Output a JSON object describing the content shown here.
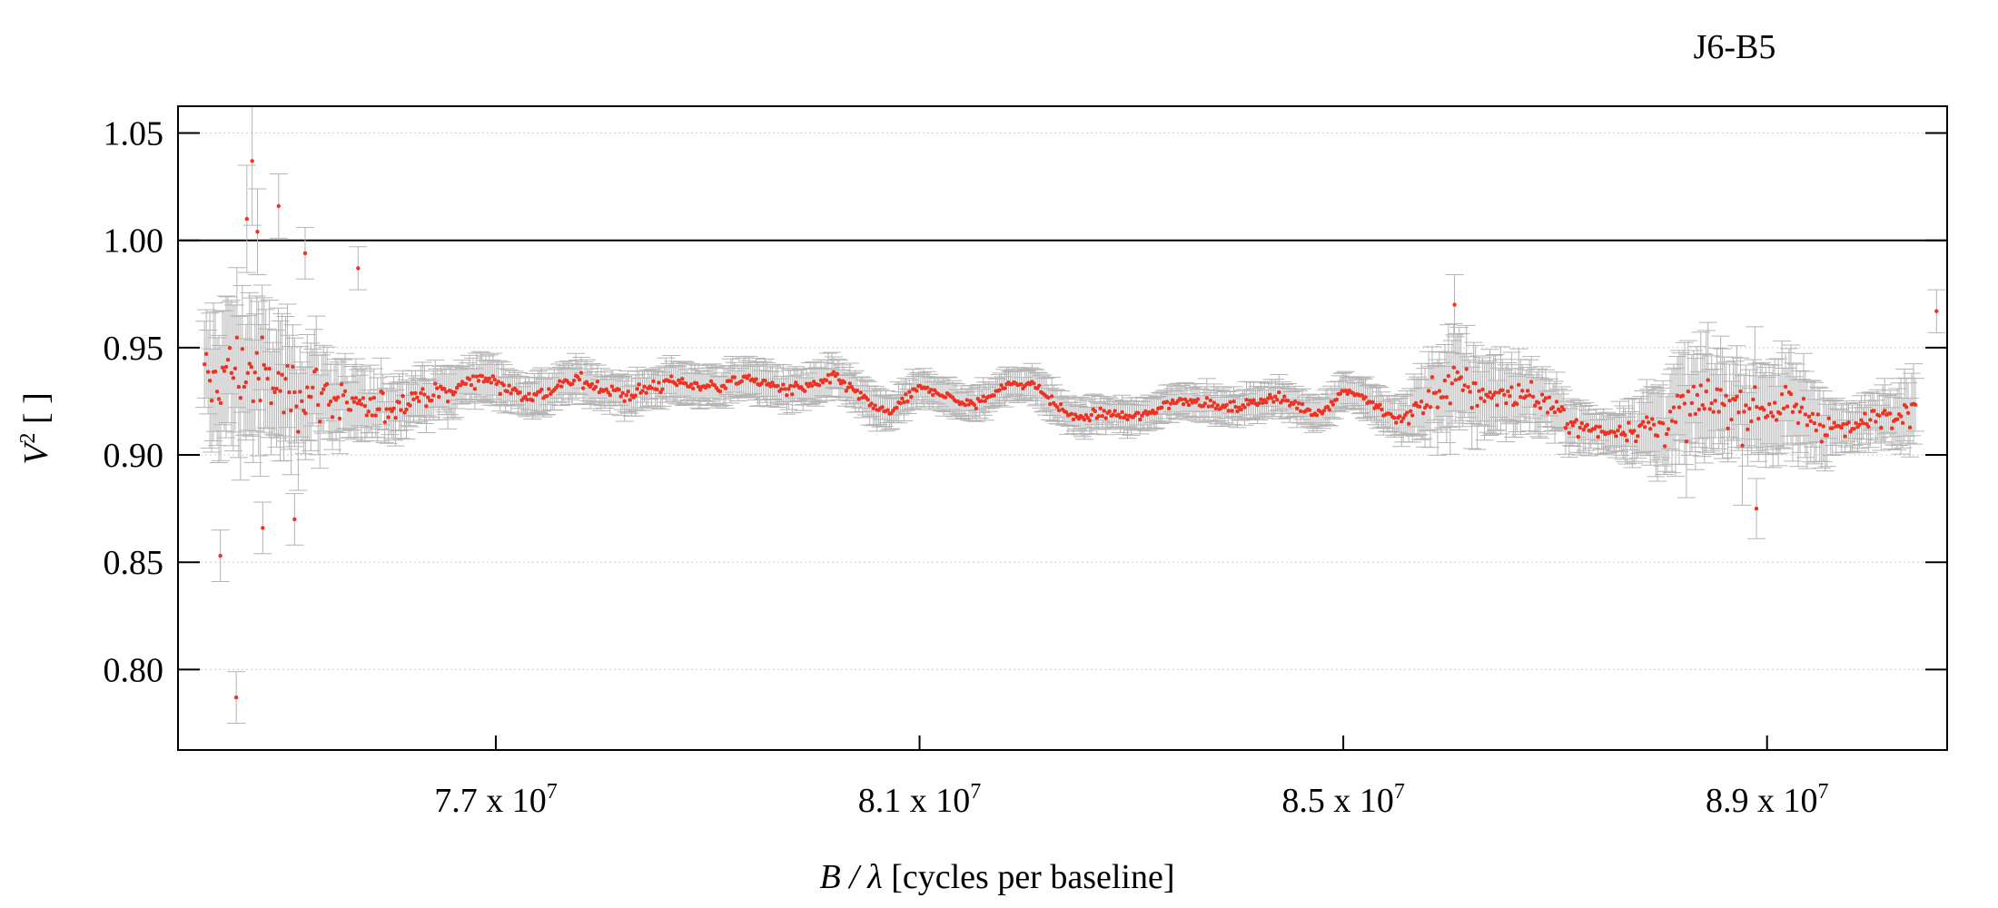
{
  "chart_data": {
    "type": "scatter",
    "title": "J6-B5",
    "xlabel_italic": "B / λ",
    "xlabel_rest": " [cycles per baseline]",
    "ylabel_base": "V",
    "ylabel_sup": "2",
    "ylabel_rest": " [ ]",
    "xlim": [
      74000000,
      90700000
    ],
    "ylim": [
      0.7625,
      1.0625
    ],
    "grid": true,
    "reference_line": 1.0,
    "x_ticks": [
      {
        "value": 77000000,
        "mantissa": "7.7 x 10",
        "exp": "7"
      },
      {
        "value": 81000000,
        "mantissa": "8.1 x 10",
        "exp": "7"
      },
      {
        "value": 85000000,
        "mantissa": "8.5 x 10",
        "exp": "7"
      },
      {
        "value": 89000000,
        "mantissa": "8.9 x 10",
        "exp": "7"
      }
    ],
    "y_ticks": [
      {
        "value": 0.8,
        "label": "0.80"
      },
      {
        "value": 0.85,
        "label": "0.85"
      },
      {
        "value": 0.9,
        "label": "0.90"
      },
      {
        "value": 0.95,
        "label": "0.95"
      },
      {
        "value": 1.0,
        "label": "1.00"
      },
      {
        "value": 1.05,
        "label": "1.05"
      }
    ],
    "series": [
      {
        "color": "#ee3322",
        "errorbar_color": "#b4b4b4",
        "profile": [
          {
            "x": 74250000,
            "y": 0.93,
            "scatter": 0.03,
            "err": 0.025
          },
          {
            "x": 74600000,
            "y": 0.935,
            "scatter": 0.035,
            "err": 0.03
          },
          {
            "x": 75000000,
            "y": 0.93,
            "scatter": 0.03,
            "err": 0.025
          },
          {
            "x": 75500000,
            "y": 0.928,
            "scatter": 0.02,
            "err": 0.016
          },
          {
            "x": 76000000,
            "y": 0.925,
            "scatter": 0.012,
            "err": 0.012
          },
          {
            "x": 76800000,
            "y": 0.932,
            "scatter": 0.007,
            "err": 0.009
          },
          {
            "x": 77200000,
            "y": 0.925,
            "scatter": 0.006,
            "err": 0.008
          },
          {
            "x": 77800000,
            "y": 0.935,
            "scatter": 0.006,
            "err": 0.008
          },
          {
            "x": 78800000,
            "y": 0.933,
            "scatter": 0.006,
            "err": 0.008
          },
          {
            "x": 79600000,
            "y": 0.928,
            "scatter": 0.005,
            "err": 0.008
          },
          {
            "x": 80200000,
            "y": 0.936,
            "scatter": 0.005,
            "err": 0.008
          },
          {
            "x": 80700000,
            "y": 0.925,
            "scatter": 0.005,
            "err": 0.008
          },
          {
            "x": 81000000,
            "y": 0.931,
            "scatter": 0.004,
            "err": 0.007
          },
          {
            "x": 81500000,
            "y": 0.922,
            "scatter": 0.004,
            "err": 0.007
          },
          {
            "x": 82100000,
            "y": 0.93,
            "scatter": 0.004,
            "err": 0.007
          },
          {
            "x": 82500000,
            "y": 0.918,
            "scatter": 0.004,
            "err": 0.007
          },
          {
            "x": 83300000,
            "y": 0.926,
            "scatter": 0.004,
            "err": 0.007
          },
          {
            "x": 84000000,
            "y": 0.92,
            "scatter": 0.004,
            "err": 0.007
          },
          {
            "x": 84800000,
            "y": 0.922,
            "scatter": 0.004,
            "err": 0.007
          },
          {
            "x": 85000000,
            "y": 0.932,
            "scatter": 0.003,
            "err": 0.007
          },
          {
            "x": 85500000,
            "y": 0.922,
            "scatter": 0.005,
            "err": 0.008
          },
          {
            "x": 86000000,
            "y": 0.93,
            "scatter": 0.02,
            "err": 0.02
          },
          {
            "x": 86800000,
            "y": 0.922,
            "scatter": 0.012,
            "err": 0.013
          },
          {
            "x": 87500000,
            "y": 0.912,
            "scatter": 0.005,
            "err": 0.008
          },
          {
            "x": 88200000,
            "y": 0.922,
            "scatter": 0.022,
            "err": 0.022
          },
          {
            "x": 89000000,
            "y": 0.918,
            "scatter": 0.02,
            "err": 0.022
          },
          {
            "x": 89800000,
            "y": 0.915,
            "scatter": 0.006,
            "err": 0.009
          },
          {
            "x": 90400000,
            "y": 0.928,
            "scatter": 0.015,
            "err": 0.015
          }
        ],
        "n_points": 950,
        "outliers": [
          {
            "x": 74550000,
            "y": 0.787,
            "err": 0.012
          },
          {
            "x": 74700000,
            "y": 1.037,
            "err": 0.03
          },
          {
            "x": 74650000,
            "y": 1.01,
            "err": 0.025
          },
          {
            "x": 74950000,
            "y": 1.016,
            "err": 0.015
          },
          {
            "x": 74750000,
            "y": 1.004,
            "err": 0.02
          },
          {
            "x": 75200000,
            "y": 0.994,
            "err": 0.012
          },
          {
            "x": 75700000,
            "y": 0.987,
            "err": 0.01
          },
          {
            "x": 74400000,
            "y": 0.853,
            "err": 0.012
          },
          {
            "x": 74800000,
            "y": 0.866,
            "err": 0.012
          },
          {
            "x": 75100000,
            "y": 0.87,
            "err": 0.012
          },
          {
            "x": 86050000,
            "y": 0.97,
            "err": 0.014
          },
          {
            "x": 88900000,
            "y": 0.875,
            "err": 0.014
          },
          {
            "x": 90600000,
            "y": 0.967,
            "err": 0.01
          }
        ]
      }
    ]
  }
}
